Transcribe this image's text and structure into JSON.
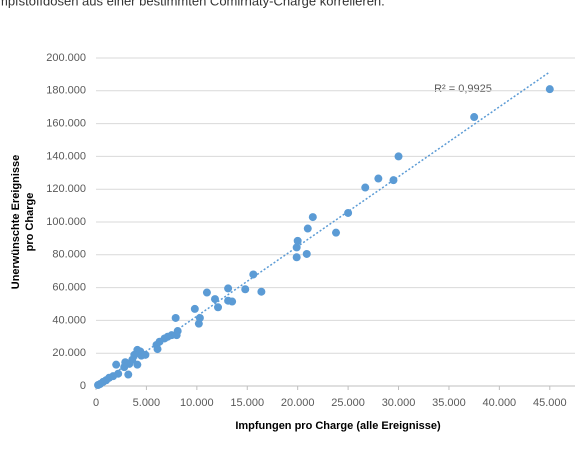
{
  "caption": "mpfstoffdosen aus einer bestimmten Comirnaty-Charge korrelieren.",
  "chart_data": {
    "type": "scatter",
    "x_label": "Impfungen pro Charge (alle Ereignisse)",
    "y_label": [
      "Unerwünschte Ereignisse",
      "pro Charge"
    ],
    "annotation": "R² = 0,9925",
    "color": "#5b9bd5",
    "trendline_color": "#5b9bd5",
    "grid": true,
    "xlim": [
      0,
      47500
    ],
    "ylim": [
      0,
      200000
    ],
    "xticks": [
      0,
      {
        "value": 5000,
        "label": "5.000"
      },
      {
        "value": 10000,
        "label": "10.000"
      },
      {
        "value": 15000,
        "label": "15.000"
      },
      {
        "value": 20000,
        "label": "20.000"
      },
      {
        "value": 25000,
        "label": "25.000"
      },
      {
        "value": 30000,
        "label": "30.000"
      },
      {
        "value": 35000,
        "label": "35.000"
      },
      {
        "value": 40000,
        "label": "40.000"
      },
      {
        "value": 45000,
        "label": "45.000"
      }
    ],
    "yticks": [
      0,
      {
        "value": 20000,
        "label": "20.000"
      },
      {
        "value": 40000,
        "label": "40.000"
      },
      {
        "value": 60000,
        "label": "60.000"
      },
      {
        "value": 80000,
        "label": "80.000"
      },
      {
        "value": 100000,
        "label": "100.000"
      },
      {
        "value": 120000,
        "label": "120.000"
      },
      {
        "value": 140000,
        "label": "140.000"
      },
      {
        "value": 160000,
        "label": "160.000"
      },
      {
        "value": 180000,
        "label": "180.000"
      },
      {
        "value": 200000,
        "label": "200.000"
      }
    ],
    "x": [
      45000,
      37500,
      30000,
      29500,
      28000,
      26700,
      25000,
      23800,
      21500,
      21000,
      20900,
      20000,
      19900,
      19900,
      15600,
      16400,
      14800,
      13500,
      13100,
      13100,
      11800,
      12100,
      11000,
      9800,
      10300,
      10200,
      7900,
      8100,
      8000,
      7500,
      7100,
      6800,
      6300,
      6000,
      6100,
      4400,
      4100,
      4500,
      3800,
      3600,
      3300,
      4100,
      2900,
      2800,
      3200,
      2000,
      2200,
      1700,
      1300,
      1000,
      700,
      400,
      200,
      4900
    ],
    "values": [
      181000,
      164000,
      140000,
      125500,
      126500,
      121000,
      105500,
      93500,
      103000,
      96000,
      80500,
      88500,
      84500,
      78500,
      68000,
      57500,
      59000,
      51500,
      59500,
      52000,
      53000,
      48000,
      57000,
      47000,
      41500,
      38000,
      41500,
      33500,
      31000,
      31000,
      30000,
      29000,
      27000,
      25000,
      22500,
      21000,
      22000,
      18500,
      19000,
      16000,
      13500,
      13000,
      14500,
      11500,
      7000,
      13000,
      7500,
      6000,
      5000,
      3500,
      2500,
      1200,
      600,
      19000
    ],
    "trendline": {
      "x": [
        0,
        45000
      ],
      "y": [
        0,
        191500
      ]
    }
  }
}
